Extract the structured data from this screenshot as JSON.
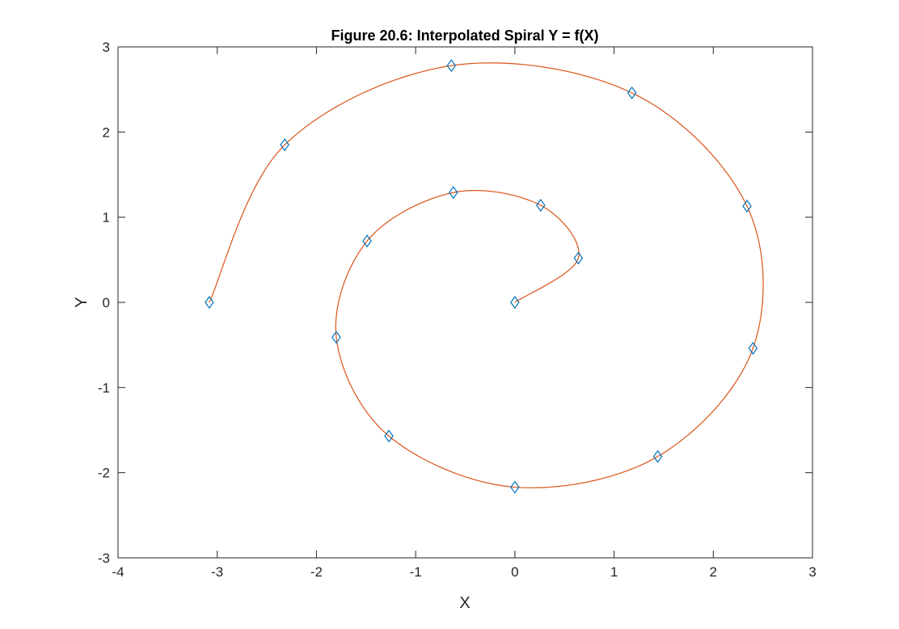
{
  "chart_data": {
    "type": "line",
    "title": "Figure 20.6: Interpolated Spiral Y = f(X)",
    "xlabel": "X",
    "ylabel": "Y",
    "xlim": [
      -4,
      3
    ],
    "ylim": [
      -3,
      3
    ],
    "xticks": [
      "-4",
      "-3",
      "-2",
      "-1",
      "0",
      "1",
      "2",
      "3"
    ],
    "yticks": [
      "-3",
      "-2",
      "-1",
      "0",
      "1",
      "2",
      "3"
    ],
    "grid": false,
    "box": true,
    "series": [
      {
        "marker": "diamond",
        "color": "#0072BD",
        "x": [
          0,
          0.64,
          0.26,
          -0.62,
          -1.49,
          -1.8,
          -1.27,
          0,
          1.44,
          2.4,
          2.34,
          1.18,
          -0.64,
          -2.32,
          -3.08
        ],
        "y": [
          0,
          0.52,
          1.14,
          1.29,
          0.72,
          -0.41,
          -1.57,
          -2.17,
          -1.81,
          -0.54,
          1.13,
          2.46,
          2.78,
          1.85,
          0
        ]
      },
      {
        "line": "solid",
        "color": "#D95319",
        "x": [
          0,
          0.64,
          0.26,
          -0.62,
          -1.49,
          -1.8,
          -1.27,
          0,
          1.44,
          2.4,
          2.34,
          1.18,
          -0.64,
          -2.32,
          -3.08
        ],
        "y": [
          0,
          0.52,
          1.14,
          1.29,
          0.72,
          -0.41,
          -1.57,
          -2.17,
          -1.81,
          -0.54,
          1.13,
          2.46,
          2.78,
          1.85,
          0
        ]
      }
    ]
  }
}
